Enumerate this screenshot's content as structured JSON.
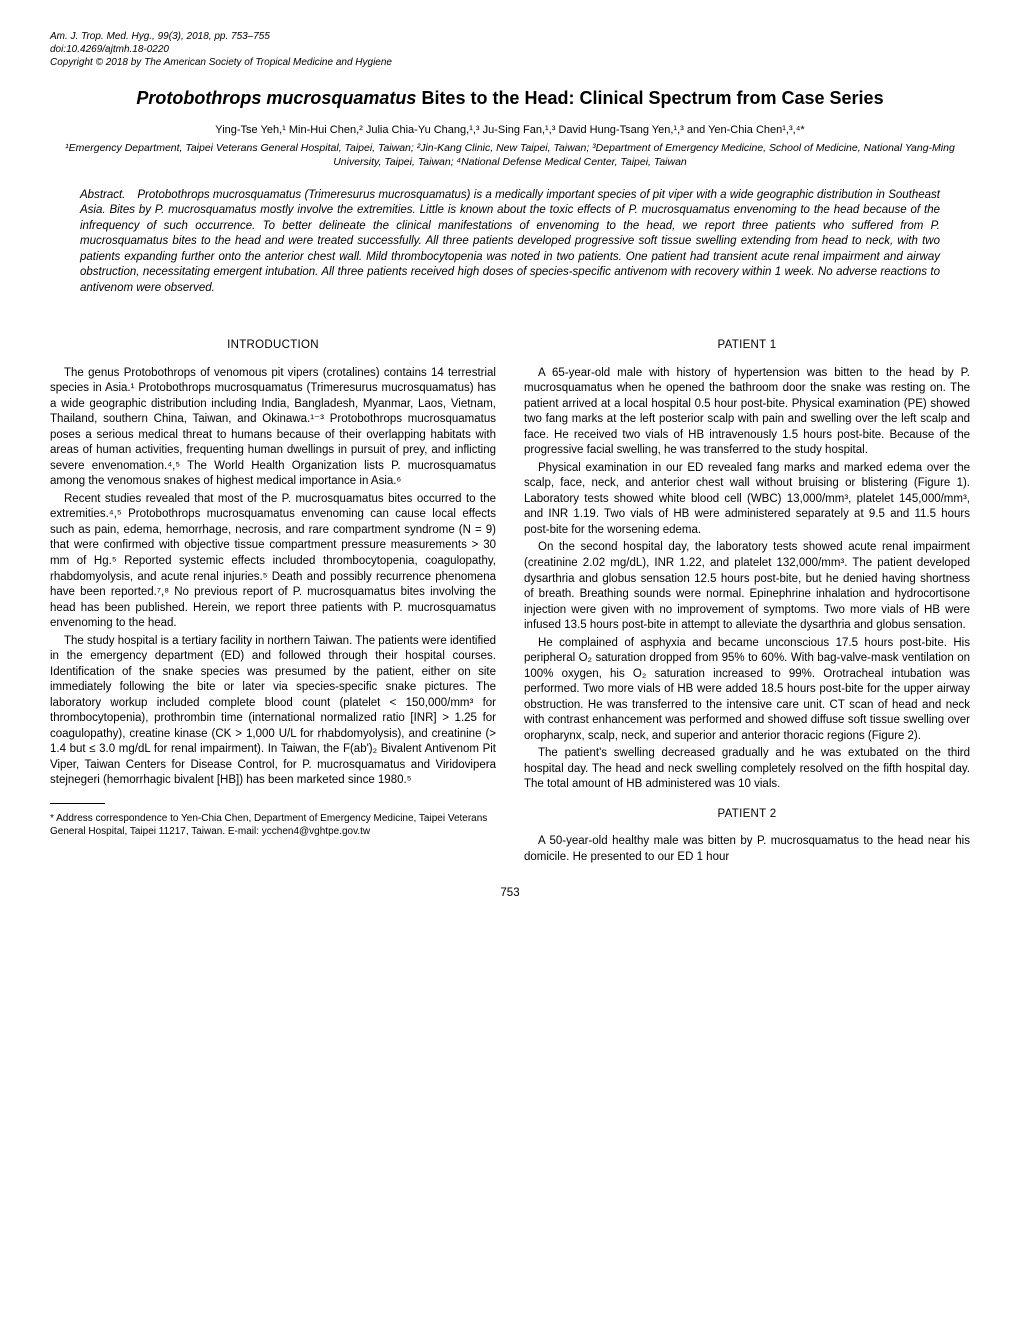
{
  "header": {
    "line1": "Am. J. Trop. Med. Hyg., 99(3), 2018, pp. 753–755",
    "line2": "doi:10.4269/ajtmh.18-0220",
    "line3": "Copyright © 2018 by The American Society of Tropical Medicine and Hygiene"
  },
  "title": {
    "italic_part": "Protobothrops mucrosquamatus",
    "rest": " Bites to the Head: Clinical Spectrum from Case Series"
  },
  "authors": "Ying-Tse Yeh,¹ Min-Hui Chen,² Julia Chia-Yu Chang,¹,³ Ju-Sing Fan,¹,³ David Hung-Tsang Yen,¹,³ and Yen-Chia Chen¹,³,⁴*",
  "affiliations": "¹Emergency Department, Taipei Veterans General Hospital, Taipei, Taiwan; ²Jin-Kang Clinic, New Taipei, Taiwan; ³Department of Emergency Medicine, School of Medicine, National Yang-Ming University, Taipei, Taiwan; ⁴National Defense Medical Center, Taipei, Taiwan",
  "abstract": {
    "label": "Abstract.",
    "text": "Protobothrops mucrosquamatus (Trimeresurus mucrosquamatus) is a medically important species of pit viper with a wide geographic distribution in Southeast Asia. Bites by P. mucrosquamatus mostly involve the extremities. Little is known about the toxic effects of P. mucrosquamatus envenoming to the head because of the infrequency of such occurrence. To better delineate the clinical manifestations of envenoming to the head, we report three patients who suffered from P. mucrosquamatus bites to the head and were treated successfully. All three patients developed progressive soft tissue swelling extending from head to neck, with two patients expanding further onto the anterior chest wall. Mild thrombocytopenia was noted in two patients. One patient had transient acute renal impairment and airway obstruction, necessitating emergent intubation. All three patients received high doses of species-specific antivenom with recovery within 1 week. No adverse reactions to antivenom were observed."
  },
  "sections": {
    "introduction": "INTRODUCTION",
    "patient1": "PATIENT 1",
    "patient2": "PATIENT 2"
  },
  "left_col": {
    "p1": "The genus Protobothrops of venomous pit vipers (crotalines) contains 14 terrestrial species in Asia.¹ Protobothrops mucrosquamatus (Trimeresurus mucrosquamatus) has a wide geographic distribution including India, Bangladesh, Myanmar, Laos, Vietnam, Thailand, southern China, Taiwan, and Okinawa.¹⁻³ Protobothrops mucrosquamatus poses a serious medical threat to humans because of their overlapping habitats with areas of human activities, frequenting human dwellings in pursuit of prey, and inflicting severe envenomation.⁴,⁵ The World Health Organization lists P. mucrosquamatus among the venomous snakes of highest medical importance in Asia.⁶",
    "p2": "Recent studies revealed that most of the P. mucrosquamatus bites occurred to the extremities.⁴,⁵ Protobothrops mucrosquamatus envenoming can cause local effects such as pain, edema, hemorrhage, necrosis, and rare compartment syndrome (N = 9) that were confirmed with objective tissue compartment pressure measurements > 30 mm of Hg.⁵ Reported systemic effects included thrombocytopenia, coagulopathy, rhabdomyolysis, and acute renal injuries.⁵ Death and possibly recurrence phenomena have been reported.⁷,⁸ No previous report of P. mucrosquamatus bites involving the head has been published. Herein, we report three patients with P. mucrosquamatus envenoming to the head.",
    "p3": "The study hospital is a tertiary facility in northern Taiwan. The patients were identified in the emergency department (ED) and followed through their hospital courses. Identification of the snake species was presumed by the patient, either on site immediately following the bite or later via species-specific snake pictures. The laboratory workup included complete blood count (platelet < 150,000/mm³ for thrombocytopenia), prothrombin time (international normalized ratio [INR] > 1.25 for coagulopathy), creatine kinase (CK > 1,000 U/L for rhabdomyolysis), and creatinine (> 1.4 but ≤ 3.0 mg/dL for renal impairment). In Taiwan, the F(ab')₂ Bivalent Antivenom Pit Viper, Taiwan Centers for Disease Control, for P. mucrosquamatus and Viridovipera stejnegeri (hemorrhagic bivalent [HB]) has been marketed since 1980.⁵"
  },
  "right_col": {
    "p1": "A 65-year-old male with history of hypertension was bitten to the head by P. mucrosquamatus when he opened the bathroom door the snake was resting on. The patient arrived at a local hospital 0.5 hour post-bite. Physical examination (PE) showed two fang marks at the left posterior scalp with pain and swelling over the left scalp and face. He received two vials of HB intravenously 1.5 hours post-bite. Because of the progressive facial swelling, he was transferred to the study hospital.",
    "p2": "Physical examination in our ED revealed fang marks and marked edema over the scalp, face, neck, and anterior chest wall without bruising or blistering (Figure 1). Laboratory tests showed white blood cell (WBC) 13,000/mm³, platelet 145,000/mm³, and INR 1.19. Two vials of HB were administered separately at 9.5 and 11.5 hours post-bite for the worsening edema.",
    "p3": "On the second hospital day, the laboratory tests showed acute renal impairment (creatinine 2.02 mg/dL), INR 1.22, and platelet 132,000/mm³. The patient developed dysarthria and globus sensation 12.5 hours post-bite, but he denied having shortness of breath. Breathing sounds were normal. Epinephrine inhalation and hydrocortisone injection were given with no improvement of symptoms. Two more vials of HB were infused 13.5 hours post-bite in attempt to alleviate the dysarthria and globus sensation.",
    "p4": "He complained of asphyxia and became unconscious 17.5 hours post-bite. His peripheral O₂ saturation dropped from 95% to 60%. With bag-valve-mask ventilation on 100% oxygen, his O₂ saturation increased to 99%. Orotracheal intubation was performed. Two more vials of HB were added 18.5 hours post-bite for the upper airway obstruction. He was transferred to the intensive care unit. CT scan of head and neck with contrast enhancement was performed and showed diffuse soft tissue swelling over oropharynx, scalp, neck, and superior and anterior thoracic regions (Figure 2).",
    "p5": "The patient's swelling decreased gradually and he was extubated on the third hospital day. The head and neck swelling completely resolved on the fifth hospital day. The total amount of HB administered was 10 vials.",
    "p6": "A 50-year-old healthy male was bitten by P. mucrosquamatus to the head near his domicile. He presented to our ED 1 hour"
  },
  "footnote": "* Address correspondence to Yen-Chia Chen, Department of Emergency Medicine, Taipei Veterans General Hospital, Taipei 11217, Taiwan. E-mail: ycchen4@vghtpe.gov.tw",
  "page_number": "753"
}
